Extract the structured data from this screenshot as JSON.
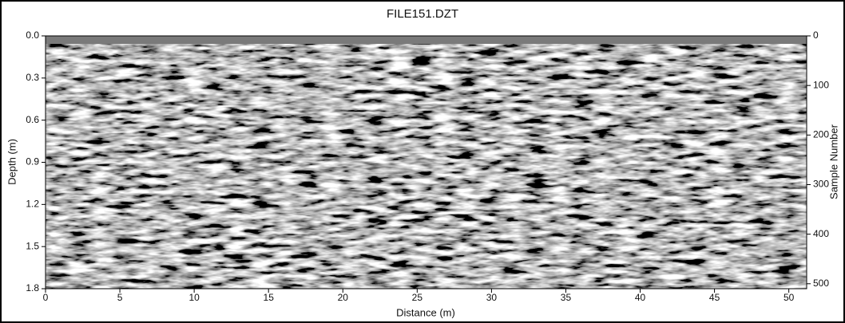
{
  "chart_data": {
    "type": "radargram",
    "title": "FILE151.DZT",
    "xlabel": "Distance (m)",
    "ylabel": "Depth (m)",
    "y2label": "Sample Number",
    "xlim": [
      0,
      51.2
    ],
    "xticks": [
      0,
      5,
      10,
      15,
      20,
      25,
      30,
      35,
      40,
      45,
      50
    ],
    "ylim": [
      1.8,
      0
    ],
    "yticks": [
      {
        "value": 0,
        "label": "0.0"
      },
      0.3,
      0.6,
      0.9,
      1.2,
      1.5,
      1.8
    ],
    "y2lim": [
      510,
      0
    ],
    "y2ticks": [
      0,
      100,
      200,
      300,
      400,
      500
    ]
  }
}
